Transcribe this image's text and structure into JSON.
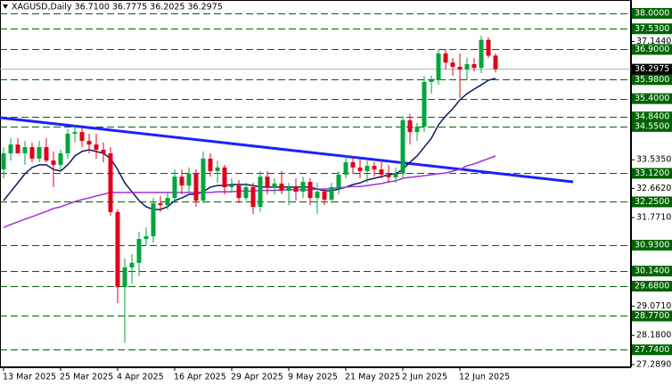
{
  "chart_data": {
    "type": "candlestick",
    "title": "XAGUSD,Daily  36.7100 36.7775 36.2025 36.2975",
    "categories": [
      "13 Mar 2025",
      null,
      null,
      null,
      null,
      null,
      null,
      null,
      "25 Mar 2025",
      null,
      null,
      null,
      null,
      null,
      null,
      null,
      "4 Apr 2025",
      null,
      null,
      null,
      null,
      null,
      null,
      null,
      "16 Apr 2025",
      null,
      null,
      null,
      null,
      null,
      null,
      null,
      "29 Apr 2025",
      null,
      null,
      null,
      null,
      null,
      null,
      null,
      "9 May 2025",
      null,
      null,
      null,
      null,
      null,
      null,
      null,
      "21 May 2025",
      null,
      null,
      null,
      null,
      null,
      null,
      null,
      "2 Jun 2025",
      null,
      null,
      null,
      null,
      null,
      null,
      null,
      "12 Jun 2025",
      null,
      null,
      null,
      null,
      null
    ],
    "open": [
      33.24,
      33.73,
      34.0,
      33.73,
      33.92,
      33.57,
      33.92,
      33.51,
      33.38,
      33.73,
      34.33,
      34.38,
      34.11,
      34.0,
      33.84,
      33.73,
      31.94,
      29.65,
      30.25,
      30.39,
      31.12,
      31.2,
      32.21,
      32.15,
      32.37,
      33.02,
      32.75,
      33.11,
      32.29,
      33.57,
      33.19,
      33.3,
      32.7,
      32.75,
      32.37,
      32.7,
      32.1,
      33.02,
      32.7,
      32.81,
      32.59,
      32.7,
      32.56,
      32.86,
      32.37,
      32.56,
      32.32,
      32.7,
      33.08,
      33.46,
      33.3,
      33.19,
      33.35,
      33.24,
      33.08,
      33.0,
      33.11,
      34.74,
      34.38,
      34.55,
      35.91,
      35.96,
      36.78,
      36.5,
      36.37,
      36.29,
      36.45,
      36.34,
      37.19,
      36.71
    ],
    "high": [
      33.92,
      34.19,
      34.19,
      34.11,
      34.06,
      34.11,
      34.19,
      33.79,
      33.84,
      34.47,
      34.6,
      34.55,
      34.33,
      34.33,
      34.06,
      33.92,
      32.02,
      30.52,
      30.66,
      31.34,
      31.47,
      32.37,
      32.43,
      32.56,
      33.24,
      33.24,
      33.3,
      33.24,
      33.79,
      33.73,
      33.51,
      33.38,
      32.97,
      32.92,
      32.83,
      32.83,
      33.19,
      33.19,
      32.97,
      33.19,
      32.83,
      32.97,
      33.02,
      32.97,
      32.83,
      32.64,
      32.83,
      33.19,
      33.65,
      33.65,
      33.57,
      33.51,
      33.46,
      33.51,
      33.38,
      33.3,
      34.87,
      34.93,
      34.66,
      36.1,
      36.1,
      36.91,
      36.91,
      36.64,
      36.78,
      36.64,
      36.64,
      37.32,
      37.27,
      36.7775
    ],
    "low": [
      32.97,
      33.51,
      33.84,
      33.38,
      33.46,
      33.46,
      33.46,
      32.7,
      33.19,
      33.57,
      34.06,
      33.92,
      33.73,
      33.57,
      33.46,
      31.83,
      29.16,
      27.95,
      29.76,
      29.98,
      30.93,
      31.01,
      31.94,
      32.02,
      32.21,
      32.48,
      32.56,
      32.1,
      32.21,
      33.02,
      32.83,
      32.48,
      32.54,
      32.21,
      32.29,
      31.88,
      31.94,
      32.48,
      32.48,
      32.48,
      32.15,
      32.29,
      32.37,
      32.15,
      31.88,
      32.15,
      32.21,
      32.48,
      32.97,
      33.11,
      32.97,
      32.83,
      33.02,
      32.97,
      32.83,
      32.83,
      32.97,
      34.0,
      34.11,
      34.38,
      35.55,
      35.82,
      36.29,
      36.1,
      35.42,
      35.96,
      36.23,
      36.18,
      36.64,
      36.2025
    ],
    "close": [
      33.73,
      34.0,
      33.73,
      33.92,
      33.57,
      33.92,
      33.51,
      33.38,
      33.73,
      34.33,
      34.38,
      34.11,
      34.0,
      33.84,
      33.73,
      31.94,
      29.65,
      30.25,
      30.39,
      31.12,
      31.2,
      32.21,
      32.15,
      32.37,
      33.02,
      32.75,
      33.11,
      32.29,
      33.57,
      33.19,
      33.3,
      32.7,
      32.75,
      32.37,
      32.7,
      32.1,
      33.02,
      32.7,
      32.81,
      32.59,
      32.7,
      32.56,
      32.86,
      32.37,
      32.56,
      32.32,
      32.7,
      33.08,
      33.46,
      33.3,
      33.19,
      33.35,
      33.24,
      33.08,
      33.0,
      33.11,
      34.74,
      34.38,
      34.55,
      35.91,
      35.96,
      36.78,
      36.5,
      36.37,
      36.29,
      36.45,
      36.34,
      37.19,
      36.71,
      36.2975
    ],
    "up_color": "#00a63c",
    "down_color": "#e0001b",
    "overlays": [
      {
        "color": "#0c1a5e",
        "values": [
          32.29,
          32.56,
          32.83,
          33.11,
          33.3,
          33.38,
          33.38,
          33.24,
          33.19,
          33.38,
          33.65,
          33.79,
          33.84,
          33.79,
          33.73,
          33.57,
          33.24,
          32.83,
          32.56,
          32.29,
          32.1,
          32.02,
          32.02,
          32.1,
          32.29,
          32.37,
          32.48,
          32.48,
          32.56,
          32.7,
          32.75,
          32.75,
          32.78,
          32.78,
          32.78,
          32.75,
          32.7,
          32.7,
          32.7,
          32.7,
          32.7,
          32.7,
          32.7,
          32.7,
          32.64,
          32.59,
          32.59,
          32.64,
          32.7,
          32.78,
          32.83,
          32.92,
          32.97,
          33.02,
          33.08,
          33.11,
          33.24,
          33.46,
          33.65,
          33.92,
          34.19,
          34.6,
          34.87,
          35.09,
          35.36,
          35.55,
          35.69,
          35.82,
          35.96,
          36.02
        ]
      },
      {
        "color": "#a030d8",
        "values": [
          31.47,
          31.56,
          31.64,
          31.72,
          31.8,
          31.88,
          31.96,
          32.05,
          32.1,
          32.18,
          32.26,
          32.32,
          32.37,
          32.43,
          32.48,
          32.54,
          32.54,
          32.54,
          32.54,
          32.54,
          32.54,
          32.54,
          32.54,
          32.54,
          32.54,
          32.54,
          32.54,
          32.54,
          32.54,
          32.54,
          32.56,
          32.56,
          32.56,
          32.58,
          32.58,
          32.58,
          32.6,
          32.6,
          32.6,
          32.62,
          32.62,
          32.62,
          32.62,
          32.62,
          32.64,
          32.64,
          32.66,
          32.68,
          32.7,
          32.72,
          32.72,
          32.75,
          32.78,
          32.81,
          32.86,
          32.89,
          32.97,
          33.0,
          33.02,
          33.05,
          33.08,
          33.11,
          33.13,
          33.19,
          33.24,
          33.35,
          33.41,
          33.49,
          33.57,
          33.65
        ]
      }
    ],
    "trendline": {
      "color": "#1a22ff",
      "x": [
        -0.5,
        79.875
      ],
      "values": [
        34.82,
        32.86
      ]
    },
    "ylim": [
      27.206,
      38.408
    ],
    "yticks": [
      {
        "value": 37.144,
        "label": "37.1440"
      },
      {
        "value": 33.535,
        "label": "33.5350"
      },
      {
        "value": 32.662,
        "label": "32.6620"
      },
      {
        "value": 31.771,
        "label": "31.7710"
      },
      {
        "value": 29.071,
        "label": "29.0710"
      },
      {
        "value": 28.18,
        "label": "28.1800"
      },
      {
        "value": 27.289,
        "label": "27.2890"
      }
    ],
    "levels": [
      {
        "value": 38,
        "label": "38.0000"
      },
      {
        "value": 37.53,
        "label": "37.5300"
      },
      {
        "value": 36.9,
        "label": "36.9000"
      },
      {
        "value": 35.98,
        "label": "35.9800"
      },
      {
        "value": 35.4,
        "label": "35.4000"
      },
      {
        "value": 34.84,
        "label": "34.8400"
      },
      {
        "value": 34.55,
        "label": "34.5500"
      },
      {
        "value": 33.12,
        "label": "33.1200"
      },
      {
        "value": 32.25,
        "label": "32.2500"
      },
      {
        "value": 30.93,
        "label": "30.9300"
      },
      {
        "value": 30.14,
        "label": "30.1400"
      },
      {
        "value": 29.68,
        "label": "29.6800"
      },
      {
        "value": 28.77,
        "label": "28.7700"
      },
      {
        "value": 27.74,
        "label": "27.7400"
      }
    ],
    "level_color": "#006400",
    "current_price": {
      "value": 36.2975,
      "label": "36.2975"
    }
  }
}
